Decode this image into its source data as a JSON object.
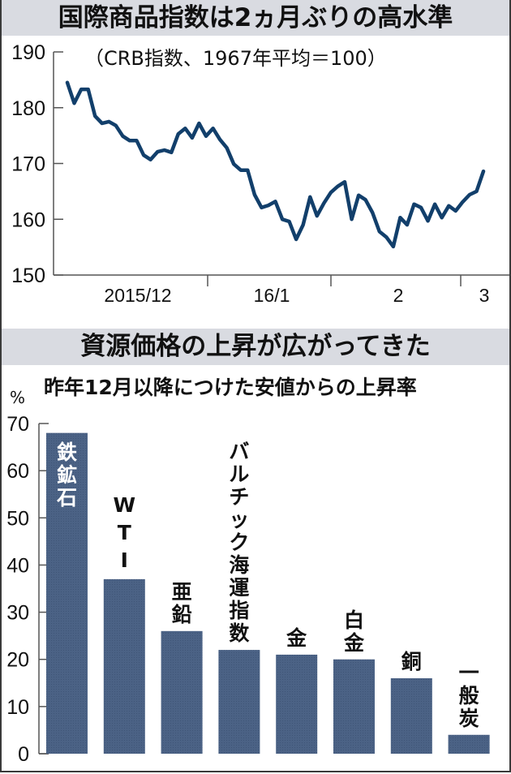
{
  "top_chart": {
    "title": "国際商品指数は2ヵ月ぶりの高水準",
    "subtitle": "（CRB指数、1967年平均＝100）",
    "y_ticks": [
      "190",
      "180",
      "170",
      "160",
      "150"
    ],
    "x_ticks": [
      "2015/12",
      "16/1",
      "2",
      "3"
    ]
  },
  "bottom_chart": {
    "title": "資源価格の上昇が広がってきた",
    "subtitle": "昨年12月以降につけた安値からの上昇率",
    "unit": "%",
    "y_ticks": [
      "70",
      "60",
      "50",
      "40",
      "30",
      "20",
      "10",
      "0"
    ],
    "bar_labels": [
      "鉄鉱石",
      "WTI",
      "亜鉛",
      "バルチック海運指数",
      "金",
      "白金",
      "銅",
      "一般炭"
    ]
  },
  "colors": {
    "line": "#123f6b",
    "bar": "#4b6285",
    "band": "#d9dbe1",
    "axis": "#555555"
  },
  "chart_data": [
    {
      "type": "line",
      "title": "国際商品指数は2ヵ月ぶりの高水準",
      "subtitle": "（CRB指数、1967年平均＝100）",
      "xlabel": "",
      "ylabel": "CRB指数",
      "ylim": [
        150,
        190
      ],
      "yticks": [
        150,
        160,
        170,
        180,
        190
      ],
      "x_tick_labels": [
        "2015/12",
        "16/1",
        "2",
        "3"
      ],
      "grid": false,
      "series": [
        {
          "name": "CRB指数",
          "values": [
            184.5,
            180.8,
            183.3,
            183.3,
            178.5,
            177.2,
            177.5,
            176.8,
            174.9,
            174.1,
            174.1,
            171.5,
            170.7,
            172.1,
            172.4,
            172.0,
            175.3,
            176.3,
            174.6,
            177.2,
            174.9,
            176.3,
            174.3,
            172.8,
            169.9,
            168.8,
            168.8,
            164.4,
            162.1,
            162.5,
            163.2,
            160.0,
            159.6,
            156.4,
            159.0,
            164.0,
            160.6,
            162.9,
            164.8,
            165.9,
            166.7,
            160.0,
            164.3,
            163.5,
            161.2,
            157.8,
            156.8,
            155.1,
            160.3,
            159.0,
            162.7,
            162.1,
            159.7,
            162.7,
            160.3,
            162.4,
            161.5,
            163.1,
            164.4,
            165.0,
            168.6
          ]
        }
      ]
    },
    {
      "type": "bar",
      "title": "資源価格の上昇が広がってきた",
      "subtitle": "昨年12月以降につけた安値からの上昇率",
      "xlabel": "",
      "ylabel": "%",
      "ylim": [
        0,
        70
      ],
      "yticks": [
        0,
        10,
        20,
        30,
        40,
        50,
        60,
        70
      ],
      "grid": false,
      "categories": [
        "鉄鉱石",
        "WTI",
        "亜鉛",
        "バルチック海運指数",
        "金",
        "白金",
        "銅",
        "一般炭"
      ],
      "values": [
        68,
        37,
        26,
        22,
        21,
        20,
        16,
        4
      ]
    }
  ]
}
